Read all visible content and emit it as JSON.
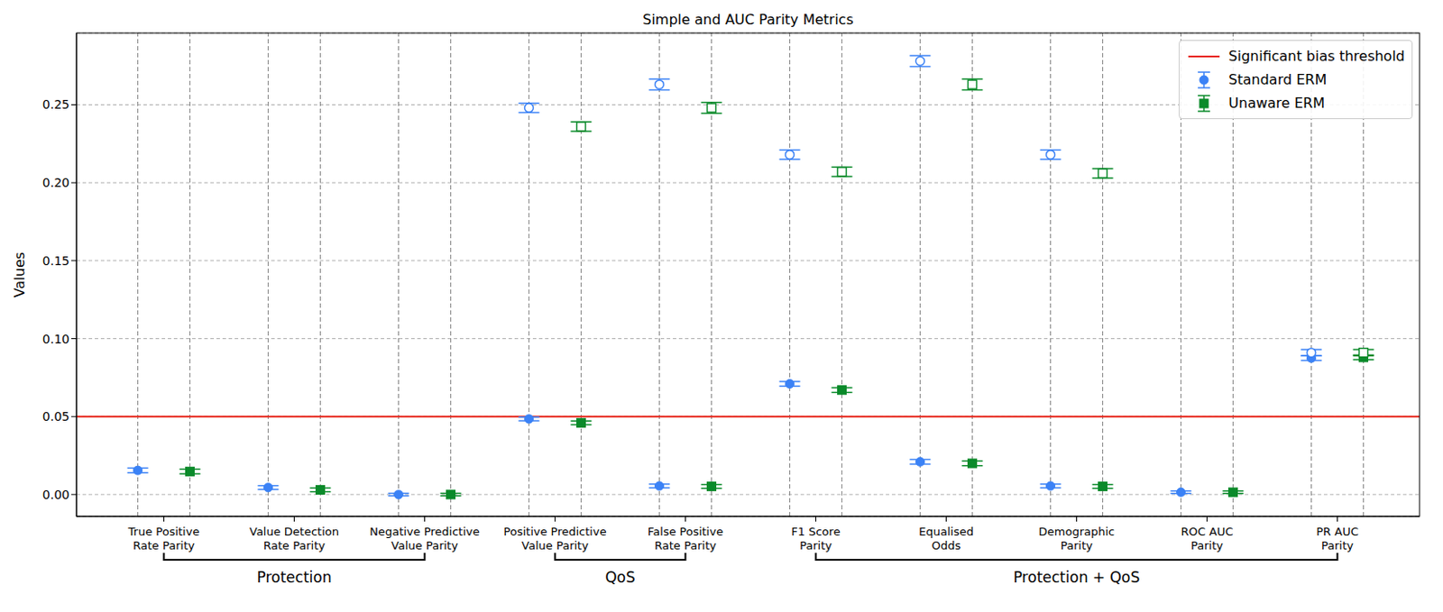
{
  "chart_data": {
    "type": "scatter",
    "title": "Simple and AUC Parity Metrics",
    "ylabel": "Values",
    "categories": [
      "True Positive Rate Parity",
      "Value Detection Rate Parity",
      "Negative Predictive Value Parity",
      "Positive Predictive Value Parity",
      "False Positive Rate Parity",
      "F1 Score Parity",
      "Equalised Odds",
      "Demographic Parity",
      "ROC AUC Parity",
      "PR AUC Parity"
    ],
    "series": [
      {
        "name": "Standard ERM",
        "color": "#3b82f6",
        "marker": "circle",
        "values": [
          0.0155,
          0.0045,
          0.0,
          0.0485,
          0.0055,
          0.071,
          0.021,
          0.0055,
          0.0015,
          0.0875
        ],
        "errors": [
          0.0015,
          0.0012,
          0.0008,
          0.0012,
          0.0012,
          0.0015,
          0.0015,
          0.0012,
          0.0008,
          0.0015
        ],
        "open_values": [
          null,
          null,
          null,
          0.248,
          0.263,
          0.218,
          0.278,
          0.218,
          null,
          0.091
        ],
        "open_errors": [
          null,
          null,
          null,
          0.003,
          0.0035,
          0.003,
          0.0035,
          0.003,
          null,
          0.002
        ]
      },
      {
        "name": "Unaware ERM",
        "color": "#0a8a2a",
        "marker": "square",
        "values": [
          0.0148,
          0.003,
          0.0,
          0.046,
          0.0052,
          0.067,
          0.02,
          0.0052,
          0.0015,
          0.088
        ],
        "errors": [
          0.0015,
          0.0012,
          0.0008,
          0.0012,
          0.0012,
          0.0015,
          0.0015,
          0.0012,
          0.0008,
          0.0015
        ],
        "open_values": [
          null,
          null,
          null,
          0.236,
          0.248,
          0.207,
          0.263,
          0.206,
          null,
          0.091
        ],
        "open_errors": [
          null,
          null,
          null,
          0.003,
          0.0035,
          0.003,
          0.0035,
          0.003,
          null,
          0.002
        ]
      }
    ],
    "threshold": {
      "value": 0.05,
      "label": "Significant bias threshold",
      "color": "#e8251a"
    },
    "groups": [
      {
        "label": "Protection",
        "categories": [
          "True Positive Rate Parity",
          "Value Detection Rate Parity",
          "Negative Predictive Value Parity"
        ]
      },
      {
        "label": "QoS",
        "categories": [
          "Positive Predictive Value Parity",
          "False Positive Rate Parity"
        ]
      },
      {
        "label": "Protection + QoS",
        "categories": [
          "F1 Score Parity",
          "Equalised Odds",
          "Demographic Parity",
          "ROC AUC Parity",
          "PR AUC Parity"
        ]
      }
    ],
    "ylim": [
      -0.014,
      0.296
    ],
    "yticks": [
      {
        "value": 0,
        "label": "0.00"
      },
      {
        "value": 0.05,
        "label": "0.05"
      },
      {
        "value": 0.1,
        "label": "0.10"
      },
      {
        "value": 0.15,
        "label": "0.15"
      },
      {
        "value": 0.2,
        "label": "0.20"
      },
      {
        "value": 0.25,
        "label": "0.25"
      }
    ],
    "grid": true,
    "legend": "upper right"
  }
}
